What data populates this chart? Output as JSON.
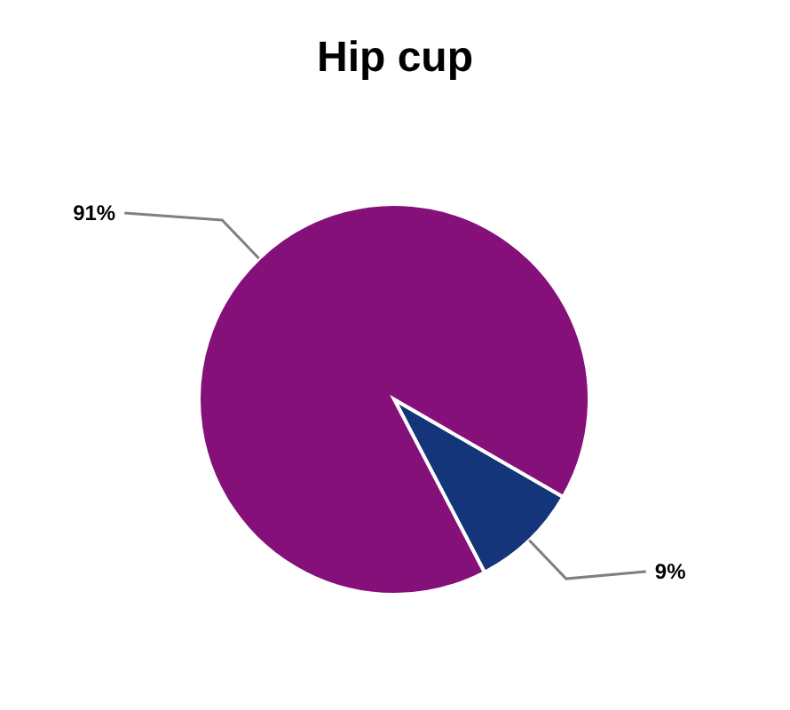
{
  "chart_data": {
    "type": "pie",
    "title": "Hip cup",
    "categories": [
      null,
      null
    ],
    "values": [
      9,
      91
    ],
    "colors": [
      "#14357a",
      "#861079"
    ],
    "value_labels": [
      "9%",
      "91%"
    ]
  }
}
